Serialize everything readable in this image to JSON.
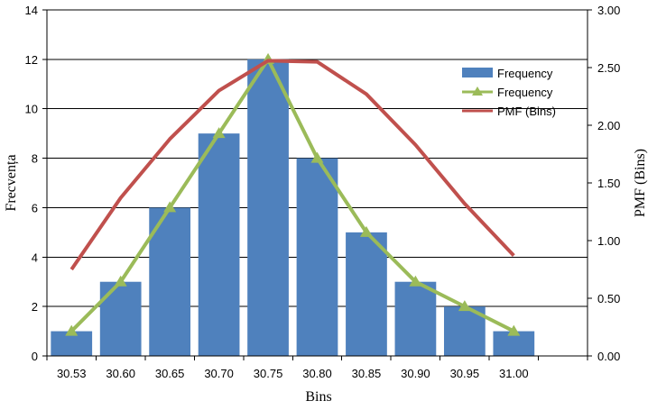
{
  "chart_data": {
    "type": "bar",
    "categories": [
      "30.53",
      "30.60",
      "30.65",
      "30.70",
      "30.75",
      "30.80",
      "30.85",
      "30.90",
      "30.95",
      "31.00"
    ],
    "series": [
      {
        "name": "Frequency",
        "kind": "bar",
        "axis": "left",
        "color": "#4f81bd",
        "values": [
          1,
          3,
          6,
          9,
          12,
          8,
          5,
          3,
          2,
          1
        ]
      },
      {
        "name": "Frequency",
        "kind": "line",
        "marker": "triangle",
        "axis": "left",
        "color": "#9bbb59",
        "values": [
          1,
          3,
          6,
          9,
          12,
          8,
          5,
          3,
          2,
          1
        ]
      },
      {
        "name": "PMF (Bins)",
        "kind": "line",
        "axis": "right",
        "color": "#c0504d",
        "values": [
          0.75,
          1.37,
          1.88,
          2.3,
          2.56,
          2.55,
          2.27,
          1.83,
          1.32,
          0.87
        ]
      }
    ],
    "xlabel": "Bins",
    "ylabel": "Frecvența",
    "y2label": "PMF (Bins)",
    "ylim": [
      0,
      14
    ],
    "yticks": [
      "0",
      "2",
      "4",
      "6",
      "8",
      "10",
      "12",
      "14"
    ],
    "y2lim": [
      0,
      3
    ],
    "y2ticks": [
      "0.00",
      "0.50",
      "1.00",
      "1.50",
      "2.00",
      "2.50",
      "3.00"
    ],
    "grid": true,
    "legend_position": "top-right"
  }
}
